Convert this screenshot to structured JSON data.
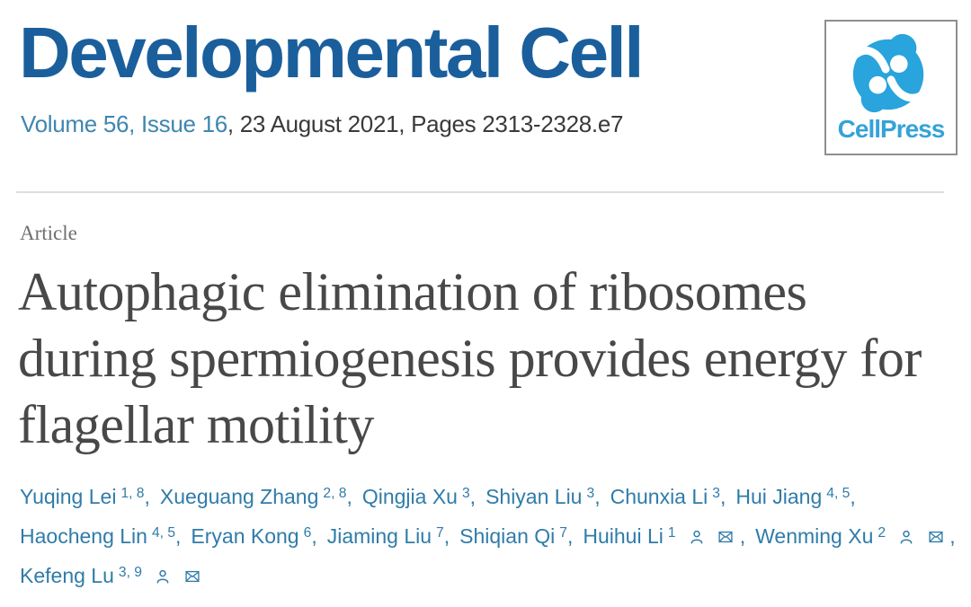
{
  "header": {
    "journal_title": "Developmental Cell",
    "citation": {
      "link_text": "Volume 56, Issue 16",
      "rest_text": ", 23 August 2021, Pages 2313-2328.e7"
    }
  },
  "logo": {
    "text": "CellPress",
    "mark_color": "#29A4DC",
    "text_color": "#35A3D7",
    "border_color": "#8F8F8F"
  },
  "article": {
    "type_label": "Article",
    "title_lines": [
      "Autophagic elimination of ribosomes",
      "during spermiogenesis provides energy for",
      "flagellar motility"
    ]
  },
  "authors": {
    "lines": [
      [
        {
          "name": "Yuqing Lei",
          "sup": "1, 8",
          "comma": true
        },
        {
          "name": "Xueguang Zhang",
          "sup": "2, 8",
          "comma": true
        },
        {
          "name": "Qingjia Xu",
          "sup": "3",
          "comma": true
        },
        {
          "name": "Shiyan Liu",
          "sup": "3",
          "comma": true
        },
        {
          "name": "Chunxia Li",
          "sup": "3",
          "comma": true
        },
        {
          "name": "Hui Jiang",
          "sup": "4, 5",
          "comma": true
        }
      ],
      [
        {
          "name": "Haocheng Lin",
          "sup": "4, 5",
          "comma": true
        },
        {
          "name": "Eryan Kong",
          "sup": "6",
          "comma": true
        },
        {
          "name": "Jiaming Liu",
          "sup": "7",
          "comma": true
        },
        {
          "name": "Shiqian Qi",
          "sup": "7",
          "comma": true
        },
        {
          "name": "Huihui Li",
          "sup": "1",
          "icons": [
            "person",
            "mail"
          ],
          "comma": true
        },
        {
          "name": "Wenming Xu",
          "sup": "2",
          "icons": [
            "person",
            "mail"
          ],
          "comma": true
        }
      ],
      [
        {
          "name": "Kefeng Lu",
          "sup": "3, 9",
          "icons": [
            "person",
            "mail"
          ],
          "comma": false
        }
      ]
    ]
  },
  "colors": {
    "journal_blue": "#1A5F9C",
    "link_blue": "#3E86B0",
    "meta_gray": "#3A3A3A",
    "label_gray": "#6F6F6F",
    "title_gray": "#484848",
    "author_blue": "#2F7CA9",
    "divider_gray": "#DEDEDE",
    "logo_cyan": "#29A4DC"
  }
}
